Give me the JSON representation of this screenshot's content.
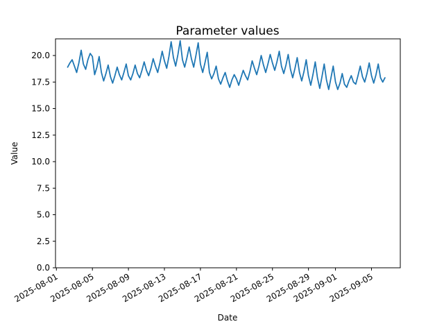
{
  "chart_data": {
    "type": "line",
    "title": "Parameter values",
    "xlabel": "Date",
    "ylabel": "Value",
    "legend": null,
    "grid": false,
    "line_color": "#1f77b4",
    "axis_color": "#000000",
    "background_color": "#ffffff",
    "x_unit": "days since 2025-08-01",
    "xlim": [
      -0.1,
      38.2
    ],
    "ylim": [
      0,
      21.57
    ],
    "y_ticks": [
      0.0,
      2.5,
      5.0,
      7.5,
      10.0,
      12.5,
      15.0,
      17.5,
      20.0
    ],
    "y_tick_labels": [
      "0.0",
      "2.5",
      "5.0",
      "7.5",
      "10.0",
      "12.5",
      "15.0",
      "17.5",
      "20.0"
    ],
    "x_ticks": [
      {
        "t": 0,
        "label": "2025-08-01"
      },
      {
        "t": 4,
        "label": "2025-08-05"
      },
      {
        "t": 8,
        "label": "2025-08-09"
      },
      {
        "t": 12,
        "label": "2025-08-13"
      },
      {
        "t": 16,
        "label": "2025-08-17"
      },
      {
        "t": 20,
        "label": "2025-08-21"
      },
      {
        "t": 24,
        "label": "2025-08-25"
      },
      {
        "t": 28,
        "label": "2025-08-29"
      },
      {
        "t": 31,
        "label": "2025-09-01"
      },
      {
        "t": 35,
        "label": "2025-09-05"
      }
    ],
    "points": [
      [
        1.25,
        18.9
      ],
      [
        1.5,
        19.3
      ],
      [
        1.75,
        19.6
      ],
      [
        2.0,
        19.0
      ],
      [
        2.25,
        18.4
      ],
      [
        2.5,
        19.3
      ],
      [
        2.75,
        20.5
      ],
      [
        3.0,
        19.2
      ],
      [
        3.25,
        18.7
      ],
      [
        3.5,
        19.6
      ],
      [
        3.75,
        20.2
      ],
      [
        4.0,
        19.9
      ],
      [
        4.25,
        18.2
      ],
      [
        4.5,
        18.9
      ],
      [
        4.75,
        19.9
      ],
      [
        5.0,
        18.4
      ],
      [
        5.25,
        17.6
      ],
      [
        5.5,
        18.3
      ],
      [
        5.75,
        19.1
      ],
      [
        6.0,
        18.0
      ],
      [
        6.25,
        17.4
      ],
      [
        6.5,
        18.1
      ],
      [
        6.75,
        18.9
      ],
      [
        7.0,
        18.2
      ],
      [
        7.25,
        17.7
      ],
      [
        7.5,
        18.4
      ],
      [
        7.75,
        19.2
      ],
      [
        8.0,
        18.1
      ],
      [
        8.25,
        17.7
      ],
      [
        8.5,
        18.3
      ],
      [
        8.75,
        19.1
      ],
      [
        9.0,
        18.3
      ],
      [
        9.25,
        17.9
      ],
      [
        9.5,
        18.6
      ],
      [
        9.75,
        19.4
      ],
      [
        10.0,
        18.6
      ],
      [
        10.25,
        18.1
      ],
      [
        10.5,
        18.8
      ],
      [
        10.75,
        19.7
      ],
      [
        11.0,
        19.0
      ],
      [
        11.25,
        18.4
      ],
      [
        11.5,
        19.3
      ],
      [
        11.75,
        20.4
      ],
      [
        12.0,
        19.5
      ],
      [
        12.25,
        18.8
      ],
      [
        12.5,
        19.9
      ],
      [
        12.75,
        21.3
      ],
      [
        13.0,
        19.8
      ],
      [
        13.25,
        19.0
      ],
      [
        13.5,
        20.1
      ],
      [
        13.75,
        21.4
      ],
      [
        14.0,
        19.6
      ],
      [
        14.25,
        18.9
      ],
      [
        14.5,
        19.8
      ],
      [
        14.75,
        20.8
      ],
      [
        15.0,
        19.7
      ],
      [
        15.25,
        18.9
      ],
      [
        15.5,
        20.0
      ],
      [
        15.75,
        21.2
      ],
      [
        16.0,
        19.2
      ],
      [
        16.25,
        18.4
      ],
      [
        16.5,
        19.3
      ],
      [
        16.75,
        20.3
      ],
      [
        17.0,
        18.4
      ],
      [
        17.25,
        17.8
      ],
      [
        17.5,
        18.3
      ],
      [
        17.75,
        19.0
      ],
      [
        18.0,
        17.8
      ],
      [
        18.25,
        17.3
      ],
      [
        18.5,
        17.9
      ],
      [
        18.75,
        18.4
      ],
      [
        19.0,
        17.6
      ],
      [
        19.25,
        17.0
      ],
      [
        19.5,
        17.7
      ],
      [
        19.75,
        18.2
      ],
      [
        20.0,
        17.8
      ],
      [
        20.25,
        17.2
      ],
      [
        20.5,
        17.9
      ],
      [
        20.75,
        18.6
      ],
      [
        21.0,
        18.1
      ],
      [
        21.25,
        17.7
      ],
      [
        21.5,
        18.5
      ],
      [
        21.75,
        19.5
      ],
      [
        22.0,
        18.8
      ],
      [
        22.25,
        18.2
      ],
      [
        22.5,
        19.0
      ],
      [
        22.75,
        20.0
      ],
      [
        23.0,
        19.1
      ],
      [
        23.25,
        18.4
      ],
      [
        23.5,
        19.2
      ],
      [
        23.75,
        20.1
      ],
      [
        24.0,
        19.3
      ],
      [
        24.25,
        18.6
      ],
      [
        24.5,
        19.4
      ],
      [
        24.75,
        20.4
      ],
      [
        25.0,
        19.0
      ],
      [
        25.25,
        18.3
      ],
      [
        25.5,
        19.1
      ],
      [
        25.75,
        20.1
      ],
      [
        26.0,
        18.7
      ],
      [
        26.25,
        17.9
      ],
      [
        26.5,
        18.8
      ],
      [
        26.75,
        19.8
      ],
      [
        27.0,
        18.4
      ],
      [
        27.25,
        17.6
      ],
      [
        27.5,
        18.5
      ],
      [
        27.75,
        19.6
      ],
      [
        28.0,
        18.1
      ],
      [
        28.25,
        17.2
      ],
      [
        28.5,
        18.2
      ],
      [
        28.75,
        19.4
      ],
      [
        29.0,
        17.9
      ],
      [
        29.25,
        16.9
      ],
      [
        29.5,
        18.0
      ],
      [
        29.75,
        19.2
      ],
      [
        30.0,
        17.7
      ],
      [
        30.25,
        16.8
      ],
      [
        30.5,
        17.9
      ],
      [
        30.75,
        19.0
      ],
      [
        31.0,
        17.5
      ],
      [
        31.25,
        16.8
      ],
      [
        31.5,
        17.4
      ],
      [
        31.75,
        18.3
      ],
      [
        32.0,
        17.3
      ],
      [
        32.25,
        17.0
      ],
      [
        32.5,
        17.6
      ],
      [
        32.75,
        18.1
      ],
      [
        33.0,
        17.5
      ],
      [
        33.25,
        17.3
      ],
      [
        33.5,
        18.1
      ],
      [
        33.75,
        19.0
      ],
      [
        34.0,
        18.0
      ],
      [
        34.25,
        17.5
      ],
      [
        34.5,
        18.3
      ],
      [
        34.75,
        19.3
      ],
      [
        35.0,
        18.1
      ],
      [
        35.25,
        17.4
      ],
      [
        35.5,
        18.2
      ],
      [
        35.75,
        19.2
      ],
      [
        36.0,
        17.9
      ],
      [
        36.25,
        17.5
      ],
      [
        36.5,
        17.9
      ]
    ]
  }
}
